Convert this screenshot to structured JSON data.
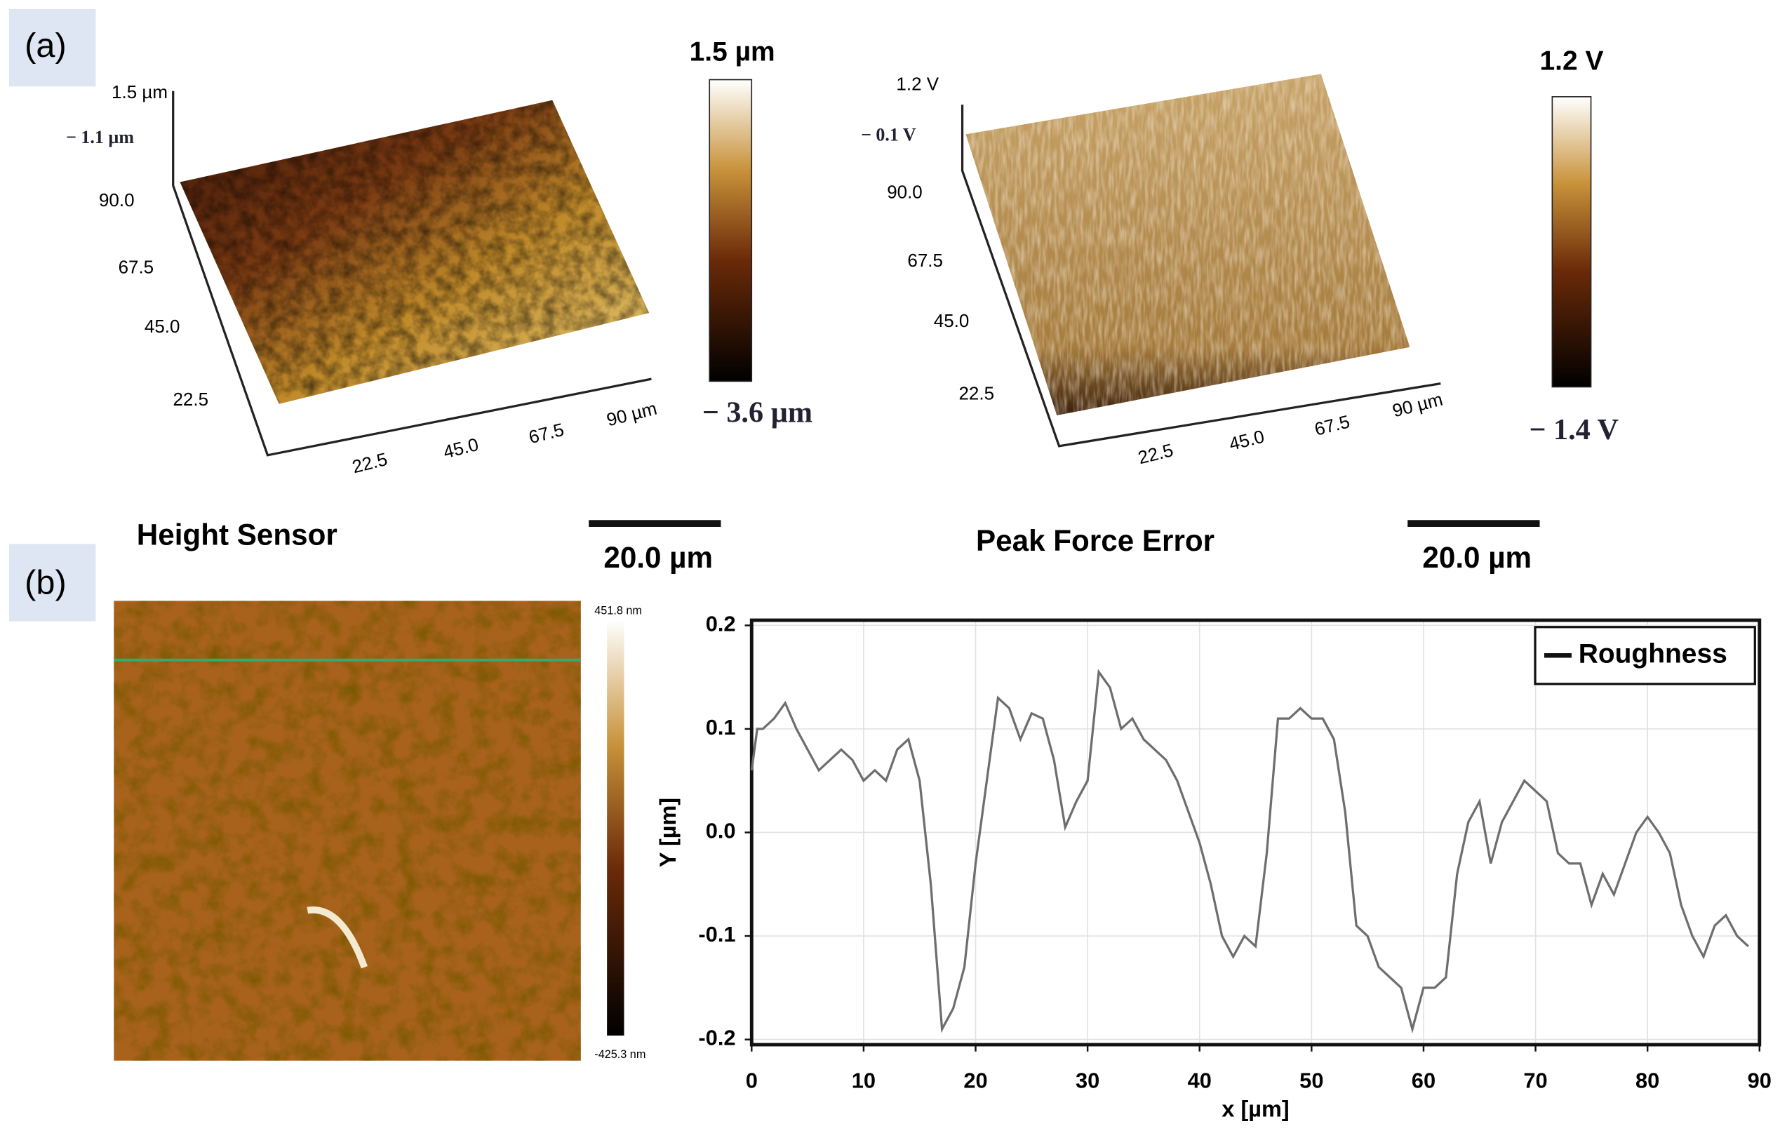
{
  "figure": {
    "panel_a": {
      "label": "(a)",
      "height": {
        "title": "Height Sensor",
        "z_top": "1.5 µm",
        "z_mid": "− 1.1 µm",
        "y_ticks": [
          "90.0",
          "67.5",
          "45.0",
          "22.5"
        ],
        "x_ticks": [
          "22.5",
          "45.0",
          "67.5",
          "90 µm"
        ],
        "colorbar_max": "1.5 µm",
        "colorbar_min": "− 3.6 µm",
        "scale_bar": "20.0 µm"
      },
      "peak_force": {
        "title": "Peak Force Error",
        "z_top": "1.2 V",
        "z_mid": "− 0.1 V",
        "y_ticks": [
          "90.0",
          "67.5",
          "45.0",
          "22.5"
        ],
        "x_ticks": [
          "22.5",
          "45.0",
          "67.5",
          "90 µm"
        ],
        "colorbar_max": "1.2 V",
        "colorbar_min": "− 1.4 V",
        "scale_bar": "20.0 µm"
      }
    },
    "panel_b": {
      "label": "(b)",
      "colorbar_max": "451.8 nm",
      "colorbar_min": "-425.3 nm"
    }
  },
  "chart_data": {
    "type": "line",
    "xlabel": "x [µm]",
    "ylabel": "Y [µm]",
    "x": [
      0,
      0.5,
      1,
      2,
      3,
      4,
      5,
      6,
      7,
      8,
      9,
      10,
      11,
      12,
      13,
      14,
      15,
      16,
      17,
      18,
      19,
      20,
      21,
      22,
      23,
      24,
      25,
      26,
      27,
      28,
      29,
      30,
      31,
      32,
      33,
      34,
      35,
      36,
      37,
      38,
      39,
      40,
      41,
      42,
      43,
      44,
      45,
      46,
      47,
      48,
      49,
      50,
      51,
      52,
      53,
      54,
      55,
      56,
      57,
      58,
      59,
      60,
      61,
      62,
      63,
      64,
      65,
      66,
      67,
      68,
      69,
      70,
      71,
      72,
      73,
      74,
      75,
      76,
      77,
      78,
      79,
      80,
      81,
      82,
      83,
      84,
      85,
      86,
      87,
      88,
      89
    ],
    "series": [
      {
        "name": "Roughness",
        "color": "#6e6e6e",
        "values": [
          0.06,
          0.1,
          0.1,
          0.11,
          0.125,
          0.1,
          0.08,
          0.06,
          0.07,
          0.08,
          0.07,
          0.05,
          0.06,
          0.05,
          0.08,
          0.09,
          0.05,
          -0.05,
          -0.19,
          -0.17,
          -0.13,
          -0.03,
          0.05,
          0.13,
          0.12,
          0.09,
          0.115,
          0.11,
          0.07,
          0.005,
          0.03,
          0.05,
          0.155,
          0.14,
          0.1,
          0.11,
          0.09,
          0.08,
          0.07,
          0.05,
          0.02,
          -0.01,
          -0.05,
          -0.1,
          -0.12,
          -0.1,
          -0.11,
          -0.02,
          0.11,
          0.11,
          0.12,
          0.11,
          0.11,
          0.09,
          0.02,
          -0.09,
          -0.1,
          -0.13,
          -0.14,
          -0.15,
          -0.19,
          -0.15,
          -0.15,
          -0.14,
          -0.04,
          0.01,
          0.03,
          -0.03,
          0.01,
          0.03,
          0.05,
          0.04,
          0.03,
          -0.02,
          -0.03,
          -0.03,
          -0.07,
          -0.04,
          -0.06,
          -0.03,
          0,
          0.015,
          0,
          -0.02,
          -0.07,
          -0.1,
          -0.12,
          -0.09,
          -0.08,
          -0.1,
          -0.11
        ]
      }
    ],
    "xlim": [
      0,
      90
    ],
    "xticks": [
      0,
      10,
      20,
      30,
      40,
      50,
      60,
      70,
      80,
      90
    ],
    "ylim": [
      -0.205,
      0.205
    ],
    "yticks": [
      -0.2,
      -0.1,
      {
        "value": 0,
        "label": "0.0"
      },
      0.1,
      0.2
    ],
    "grid": true,
    "legend": "upper right"
  }
}
